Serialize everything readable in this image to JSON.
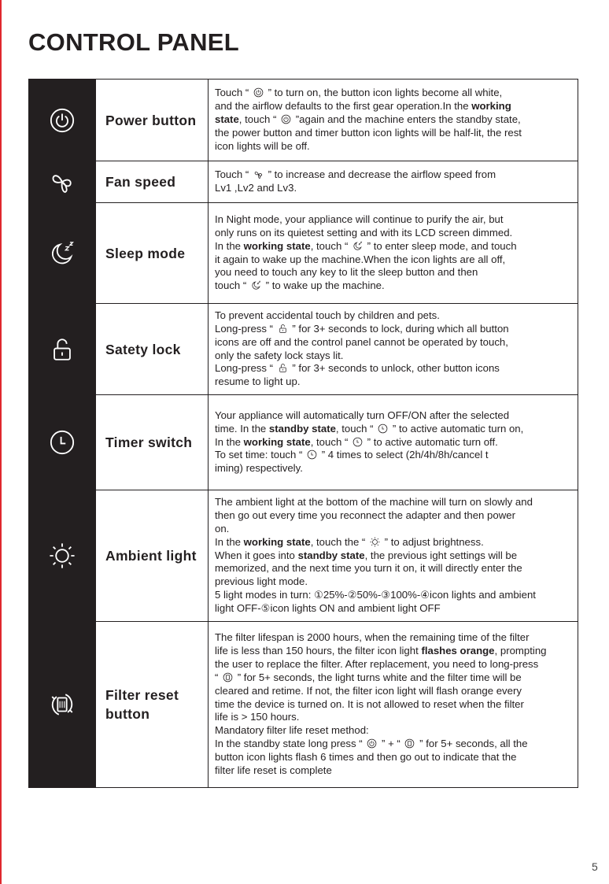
{
  "title": "CONTROL PANEL",
  "page_number": "5",
  "rows": [
    {
      "icon": "power-icon",
      "name": "Power button",
      "lines": [
        [
          {
            "t": "Touch “ "
          },
          {
            "icon": "power-icon"
          },
          {
            "t": " ” to turn on,    the button icon lights become all white,"
          }
        ],
        [
          {
            "t": "and the airflow defaults to the first gear operation.In the "
          },
          {
            "t": "working",
            "b": true
          }
        ],
        [
          {
            "t": "state",
            "b": true
          },
          {
            "t": ", touch “ "
          },
          {
            "icon": "power-icon"
          },
          {
            "t": " ”again and the machine enters the standby state,"
          }
        ],
        [
          {
            "t": "the power button and timer button icon lights will be half-lit, the rest"
          }
        ],
        [
          {
            "t": "icon lights will be off."
          }
        ]
      ]
    },
    {
      "icon": "fan-icon",
      "name": "Fan speed",
      "lines": [
        [
          {
            "t": "Touch “ "
          },
          {
            "icon": "fan-icon"
          },
          {
            "t": " ” to increase and decrease the airflow speed from"
          }
        ],
        [
          {
            "t": "Lv1 ,Lv2 and Lv3."
          }
        ]
      ]
    },
    {
      "icon": "sleep-moon-icon",
      "name": "Sleep mode",
      "lines": [
        [
          {
            "t": "In Night mode, your appliance will continue to purify the air, but"
          }
        ],
        [
          {
            "t": "only runs on its quietest setting and with its LCD screen dimmed."
          }
        ],
        [
          {
            "t": "In the "
          },
          {
            "t": "working state",
            "b": true
          },
          {
            "t": ", touch “  "
          },
          {
            "icon": "sleep-moon-icon"
          },
          {
            "t": "  ” to enter sleep mode, and touch"
          }
        ],
        [
          {
            "t": "it again to wake up the machine.When the icon lights are all off,"
          }
        ],
        [
          {
            "t": "you need to touch any key to lit the sleep button and then"
          }
        ],
        [
          {
            "t": "touch “ "
          },
          {
            "icon": "sleep-moon-icon"
          },
          {
            "t": " ” to wake up the machine."
          }
        ]
      ]
    },
    {
      "icon": "lock-icon",
      "name": "Satety lock",
      "lines": [
        [
          {
            "t": "To prevent accidental touch by children and pets."
          }
        ],
        [
          {
            "t": "Long-press   “ "
          },
          {
            "icon": "lock-icon"
          },
          {
            "t": " ”   for 3+ seconds to lock, during which all button"
          }
        ],
        [
          {
            "t": "icons are off and the control panel cannot be operated by touch,"
          }
        ],
        [
          {
            "t": "only the safety lock stays lit."
          }
        ],
        [
          {
            "t": "Long-press   “ "
          },
          {
            "icon": "lock-icon"
          },
          {
            "t": " ”  for 3+ seconds to unlock, other button icons"
          }
        ],
        [
          {
            "t": "resume to light up."
          }
        ]
      ]
    },
    {
      "icon": "clock-icon",
      "name": "Timer switch",
      "lines": [
        [
          {
            "t": "Your appliance will automatically turn OFF/ON after the selected"
          }
        ],
        [
          {
            "t": "time. In the "
          },
          {
            "t": "standby state",
            "b": true
          },
          {
            "t": ", touch “ "
          },
          {
            "icon": "clock-icon"
          },
          {
            "t": " ” to active automatic turn on,"
          }
        ],
        [
          {
            "t": "In the "
          },
          {
            "t": "working state",
            "b": true
          },
          {
            "t": ", touch “ "
          },
          {
            "icon": "clock-icon"
          },
          {
            "t": " ” to active automatic turn off."
          }
        ],
        [
          {
            "t": "To set time: touch “ "
          },
          {
            "icon": "clock-icon"
          },
          {
            "t": " ” 4 times to select (2h/4h/8h/cancel t"
          }
        ],
        [
          {
            "t": "iming) respectively."
          }
        ]
      ]
    },
    {
      "icon": "sun-icon",
      "name": "Ambient light",
      "lines": [
        [
          {
            "t": "The ambient light at the bottom of the machine will turn on slowly and"
          }
        ],
        [
          {
            "t": "then go out every time you reconnect the adapter and then power"
          }
        ],
        [
          {
            "t": "on."
          }
        ],
        [
          {
            "t": "In the "
          },
          {
            "t": "working state",
            "b": true
          },
          {
            "t": ", touch the “ "
          },
          {
            "icon": "sun-icon"
          },
          {
            "t": " ” to adjust brightness."
          }
        ],
        [
          {
            "t": "When it goes into "
          },
          {
            "t": "standby state",
            "b": true
          },
          {
            "t": ", the previous ight settings will be"
          }
        ],
        [
          {
            "t": "memorized, and the next time you turn it on, it will directly enter the"
          }
        ],
        [
          {
            "t": "previous light mode."
          }
        ],
        [
          {
            "t": "5 light modes in turn: ①25%-②50%-③100%-④icon lights and ambient"
          }
        ],
        [
          {
            "t": "light OFF-⑤icon lights ON and ambient light OFF"
          }
        ]
      ]
    },
    {
      "icon": "filter-reset-icon",
      "name": "Filter reset button",
      "lines": [
        [
          {
            "t": "The filter lifespan is 2000 hours, when the remaining time of the filter"
          }
        ],
        [
          {
            "t": "life is less than 150 hours, the filter icon light "
          },
          {
            "t": "flashes orange",
            "b": true
          },
          {
            "t": ", prompting"
          }
        ],
        [
          {
            "t": "the user to replace the filter. After replacement, you need to long-press"
          }
        ],
        [
          {
            "t": "“ "
          },
          {
            "icon": "filter-icon"
          },
          {
            "t": " ” for 5+ seconds, the light turns white and the filter time will be"
          }
        ],
        [
          {
            "t": "cleared and retime. If not, the filter icon light will flash orange every"
          }
        ],
        [
          {
            "t": "time the device is turned on. It is not allowed to reset when the filter"
          }
        ],
        [
          {
            "t": "life is > 150 hours."
          }
        ],
        [
          {
            "t": "Mandatory filter life reset method:"
          }
        ],
        [
          {
            "t": "In the standby state long press “ "
          },
          {
            "icon": "power-icon"
          },
          {
            "t": " ” + “ "
          },
          {
            "icon": "filter-icon"
          },
          {
            "t": " ” for 5+ seconds, all the"
          }
        ],
        [
          {
            "t": "button icon lights flash 6 times and then go out to indicate that the"
          }
        ],
        [
          {
            "t": "filter life reset is complete"
          }
        ]
      ]
    }
  ],
  "colors": {
    "panel_black": "#231f20",
    "edge_red": "#e0282e"
  }
}
